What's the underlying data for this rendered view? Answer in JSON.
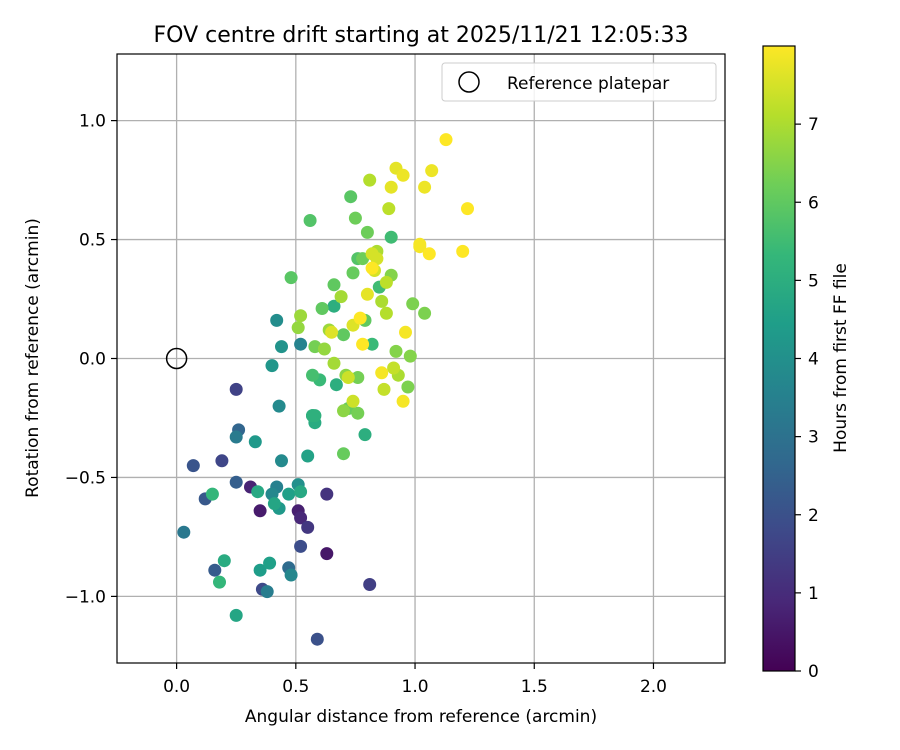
{
  "chart_data": {
    "type": "scatter",
    "title": "FOV centre drift starting at 2025/11/21 12:05:33",
    "xlabel": "Angular distance from reference (arcmin)",
    "ylabel": "Rotation from reference (arcmin)",
    "xlim": [
      -0.25,
      2.3
    ],
    "ylim": [
      -1.28,
      1.28
    ],
    "xticks": [
      0.0,
      0.5,
      1.0,
      1.5,
      2.0
    ],
    "xtick_labels": [
      "0.0",
      "0.5",
      "1.0",
      "1.5",
      "2.0"
    ],
    "yticks": [
      1.0,
      0.5,
      0.0,
      -0.5,
      -1.0
    ],
    "ytick_labels": [
      "1.0",
      "0.5",
      "0.0",
      "−0.5",
      "−1.0"
    ],
    "grid": true,
    "legend": {
      "position": "top-right",
      "entries": [
        "Reference platepar"
      ]
    },
    "reference_point": {
      "x": 0.0,
      "y": 0.0,
      "label": "Reference platepar"
    },
    "colorbar": {
      "label": "Hours from first FF file",
      "range": [
        0,
        8
      ],
      "ticks": [
        0,
        1,
        2,
        3,
        4,
        5,
        6,
        7
      ],
      "tick_labels": [
        "0",
        "1",
        "2",
        "3",
        "4",
        "5",
        "6",
        "7"
      ],
      "colormap": [
        "#440154",
        "#482878",
        "#3e4989",
        "#31688e",
        "#26828e",
        "#1f9e89",
        "#35b779",
        "#6ece58",
        "#b5de2b",
        "#fde725"
      ]
    },
    "points": [
      {
        "x": 0.35,
        "y": -0.64,
        "h": 0.6
      },
      {
        "x": 0.51,
        "y": -0.64,
        "h": 0.7
      },
      {
        "x": 0.52,
        "y": -0.67,
        "h": 0.9
      },
      {
        "x": 0.31,
        "y": -0.54,
        "h": 0.8
      },
      {
        "x": 0.63,
        "y": -0.82,
        "h": 0.5
      },
      {
        "x": 0.55,
        "y": -0.71,
        "h": 1.3
      },
      {
        "x": 0.63,
        "y": -0.57,
        "h": 1.2
      },
      {
        "x": 0.81,
        "y": -0.95,
        "h": 1.5
      },
      {
        "x": 0.25,
        "y": -0.13,
        "h": 1.6
      },
      {
        "x": 0.19,
        "y": -0.43,
        "h": 1.7
      },
      {
        "x": 0.36,
        "y": -0.97,
        "h": 1.8
      },
      {
        "x": 0.52,
        "y": -0.79,
        "h": 1.9
      },
      {
        "x": 0.59,
        "y": -1.18,
        "h": 2.0
      },
      {
        "x": 0.07,
        "y": -0.45,
        "h": 2.1
      },
      {
        "x": 0.12,
        "y": -0.59,
        "h": 2.2
      },
      {
        "x": 0.16,
        "y": -0.89,
        "h": 2.3
      },
      {
        "x": 0.25,
        "y": -0.52,
        "h": 2.4
      },
      {
        "x": 0.26,
        "y": -0.3,
        "h": 2.6
      },
      {
        "x": 0.47,
        "y": -0.88,
        "h": 2.8
      },
      {
        "x": 0.03,
        "y": -0.73,
        "h": 3.2
      },
      {
        "x": 0.25,
        "y": -0.33,
        "h": 3.3
      },
      {
        "x": 0.38,
        "y": -0.98,
        "h": 3.4
      },
      {
        "x": 0.42,
        "y": -0.54,
        "h": 3.5
      },
      {
        "x": 0.52,
        "y": 0.06,
        "h": 3.6
      },
      {
        "x": 0.48,
        "y": -0.91,
        "h": 3.7
      },
      {
        "x": 0.4,
        "y": -0.57,
        "h": 3.7
      },
      {
        "x": 0.43,
        "y": -0.2,
        "h": 3.8
      },
      {
        "x": 0.44,
        "y": -0.43,
        "h": 3.8
      },
      {
        "x": 0.42,
        "y": 0.16,
        "h": 3.9
      },
      {
        "x": 0.51,
        "y": -0.53,
        "h": 4.0
      },
      {
        "x": 0.44,
        "y": 0.05,
        "h": 4.1
      },
      {
        "x": 0.4,
        "y": -0.03,
        "h": 4.2
      },
      {
        "x": 0.33,
        "y": -0.35,
        "h": 4.3
      },
      {
        "x": 0.43,
        "y": -0.63,
        "h": 4.3
      },
      {
        "x": 0.35,
        "y": -0.89,
        "h": 4.4
      },
      {
        "x": 0.39,
        "y": -0.86,
        "h": 4.5
      },
      {
        "x": 0.47,
        "y": -0.57,
        "h": 4.5
      },
      {
        "x": 0.57,
        "y": -0.24,
        "h": 4.6
      },
      {
        "x": 0.55,
        "y": -0.41,
        "h": 4.6
      },
      {
        "x": 0.25,
        "y": -1.08,
        "h": 4.7
      },
      {
        "x": 0.41,
        "y": -0.61,
        "h": 4.7
      },
      {
        "x": 0.52,
        "y": -0.56,
        "h": 4.8
      },
      {
        "x": 0.34,
        "y": -0.56,
        "h": 4.8
      },
      {
        "x": 0.2,
        "y": -0.85,
        "h": 4.9
      },
      {
        "x": 0.58,
        "y": -0.27,
        "h": 4.9
      },
      {
        "x": 0.79,
        "y": -0.32,
        "h": 5.0
      },
      {
        "x": 0.66,
        "y": 0.22,
        "h": 5.0
      },
      {
        "x": 0.67,
        "y": -0.11,
        "h": 5.0
      },
      {
        "x": 0.58,
        "y": -0.24,
        "h": 5.1
      },
      {
        "x": 0.57,
        "y": -0.24,
        "h": 5.1
      },
      {
        "x": 0.18,
        "y": -0.94,
        "h": 5.3
      },
      {
        "x": 0.15,
        "y": -0.57,
        "h": 5.3
      },
      {
        "x": 0.6,
        "y": -0.09,
        "h": 5.4
      },
      {
        "x": 0.82,
        "y": 0.06,
        "h": 5.4
      },
      {
        "x": 0.9,
        "y": 0.51,
        "h": 5.5
      },
      {
        "x": 0.85,
        "y": 0.3,
        "h": 5.5
      },
      {
        "x": 0.57,
        "y": -0.07,
        "h": 5.6
      },
      {
        "x": 0.56,
        "y": 0.58,
        "h": 5.8
      },
      {
        "x": 0.76,
        "y": 0.42,
        "h": 5.8
      },
      {
        "x": 0.48,
        "y": 0.34,
        "h": 5.9
      },
      {
        "x": 0.73,
        "y": 0.68,
        "h": 5.9
      },
      {
        "x": 0.61,
        "y": 0.21,
        "h": 6.0
      },
      {
        "x": 0.79,
        "y": 0.16,
        "h": 6.0
      },
      {
        "x": 0.7,
        "y": 0.1,
        "h": 6.0
      },
      {
        "x": 0.66,
        "y": 0.31,
        "h": 6.0
      },
      {
        "x": 0.72,
        "y": -0.21,
        "h": 6.1
      },
      {
        "x": 0.74,
        "y": 0.36,
        "h": 6.1
      },
      {
        "x": 0.7,
        "y": -0.4,
        "h": 6.1
      },
      {
        "x": 0.75,
        "y": 0.59,
        "h": 6.2
      },
      {
        "x": 0.78,
        "y": 0.42,
        "h": 6.2
      },
      {
        "x": 0.8,
        "y": 0.53,
        "h": 6.2
      },
      {
        "x": 0.76,
        "y": -0.23,
        "h": 6.3
      },
      {
        "x": 0.58,
        "y": 0.05,
        "h": 6.3
      },
      {
        "x": 0.76,
        "y": -0.08,
        "h": 6.3
      },
      {
        "x": 0.99,
        "y": 0.23,
        "h": 6.4
      },
      {
        "x": 0.97,
        "y": -0.12,
        "h": 6.4
      },
      {
        "x": 1.04,
        "y": 0.19,
        "h": 6.4
      },
      {
        "x": 0.98,
        "y": 0.01,
        "h": 6.5
      },
      {
        "x": 0.92,
        "y": 0.03,
        "h": 6.5
      },
      {
        "x": 0.9,
        "y": 0.35,
        "h": 6.5
      },
      {
        "x": 0.71,
        "y": -0.07,
        "h": 6.6
      },
      {
        "x": 0.7,
        "y": -0.22,
        "h": 6.6
      },
      {
        "x": 0.62,
        "y": 0.04,
        "h": 6.7
      },
      {
        "x": 0.51,
        "y": 0.13,
        "h": 6.7
      },
      {
        "x": 0.52,
        "y": 0.18,
        "h": 6.8
      },
      {
        "x": 0.64,
        "y": 0.12,
        "h": 6.8
      },
      {
        "x": 0.66,
        "y": -0.02,
        "h": 6.9
      },
      {
        "x": 0.69,
        "y": 0.26,
        "h": 6.9
      },
      {
        "x": 0.93,
        "y": -0.07,
        "h": 7.0
      },
      {
        "x": 0.84,
        "y": 0.45,
        "h": 7.0
      },
      {
        "x": 0.86,
        "y": 0.24,
        "h": 7.0
      },
      {
        "x": 0.81,
        "y": 0.75,
        "h": 7.1
      },
      {
        "x": 0.88,
        "y": 0.19,
        "h": 7.1
      },
      {
        "x": 0.88,
        "y": 0.32,
        "h": 7.2
      },
      {
        "x": 0.89,
        "y": 0.63,
        "h": 7.2
      },
      {
        "x": 0.91,
        "y": -0.04,
        "h": 7.3
      },
      {
        "x": 0.87,
        "y": -0.13,
        "h": 7.3
      },
      {
        "x": 0.74,
        "y": -0.18,
        "h": 7.4
      },
      {
        "x": 0.72,
        "y": -0.08,
        "h": 7.4
      },
      {
        "x": 0.82,
        "y": 0.44,
        "h": 7.5
      },
      {
        "x": 0.84,
        "y": 0.42,
        "h": 7.5
      },
      {
        "x": 0.83,
        "y": 0.37,
        "h": 7.5
      },
      {
        "x": 0.65,
        "y": 0.11,
        "h": 7.6
      },
      {
        "x": 0.74,
        "y": 0.14,
        "h": 7.6
      },
      {
        "x": 0.8,
        "y": 0.27,
        "h": 7.7
      },
      {
        "x": 0.9,
        "y": 0.72,
        "h": 7.7
      },
      {
        "x": 0.92,
        "y": 0.8,
        "h": 7.7
      },
      {
        "x": 0.95,
        "y": 0.77,
        "h": 7.8
      },
      {
        "x": 1.04,
        "y": 0.72,
        "h": 7.8
      },
      {
        "x": 1.07,
        "y": 0.79,
        "h": 7.8
      },
      {
        "x": 0.86,
        "y": -0.06,
        "h": 7.9
      },
      {
        "x": 0.95,
        "y": -0.18,
        "h": 7.9
      },
      {
        "x": 0.96,
        "y": 0.11,
        "h": 7.9
      },
      {
        "x": 1.02,
        "y": 0.47,
        "h": 7.9
      },
      {
        "x": 1.02,
        "y": 0.48,
        "h": 7.9
      },
      {
        "x": 1.06,
        "y": 0.44,
        "h": 8.0
      },
      {
        "x": 1.13,
        "y": 0.92,
        "h": 8.0
      },
      {
        "x": 1.2,
        "y": 0.45,
        "h": 8.0
      },
      {
        "x": 1.22,
        "y": 0.63,
        "h": 8.0
      },
      {
        "x": 0.78,
        "y": 0.06,
        "h": 8.0
      },
      {
        "x": 0.77,
        "y": 0.17,
        "h": 8.0
      },
      {
        "x": 0.82,
        "y": 0.38,
        "h": 8.0
      }
    ]
  }
}
